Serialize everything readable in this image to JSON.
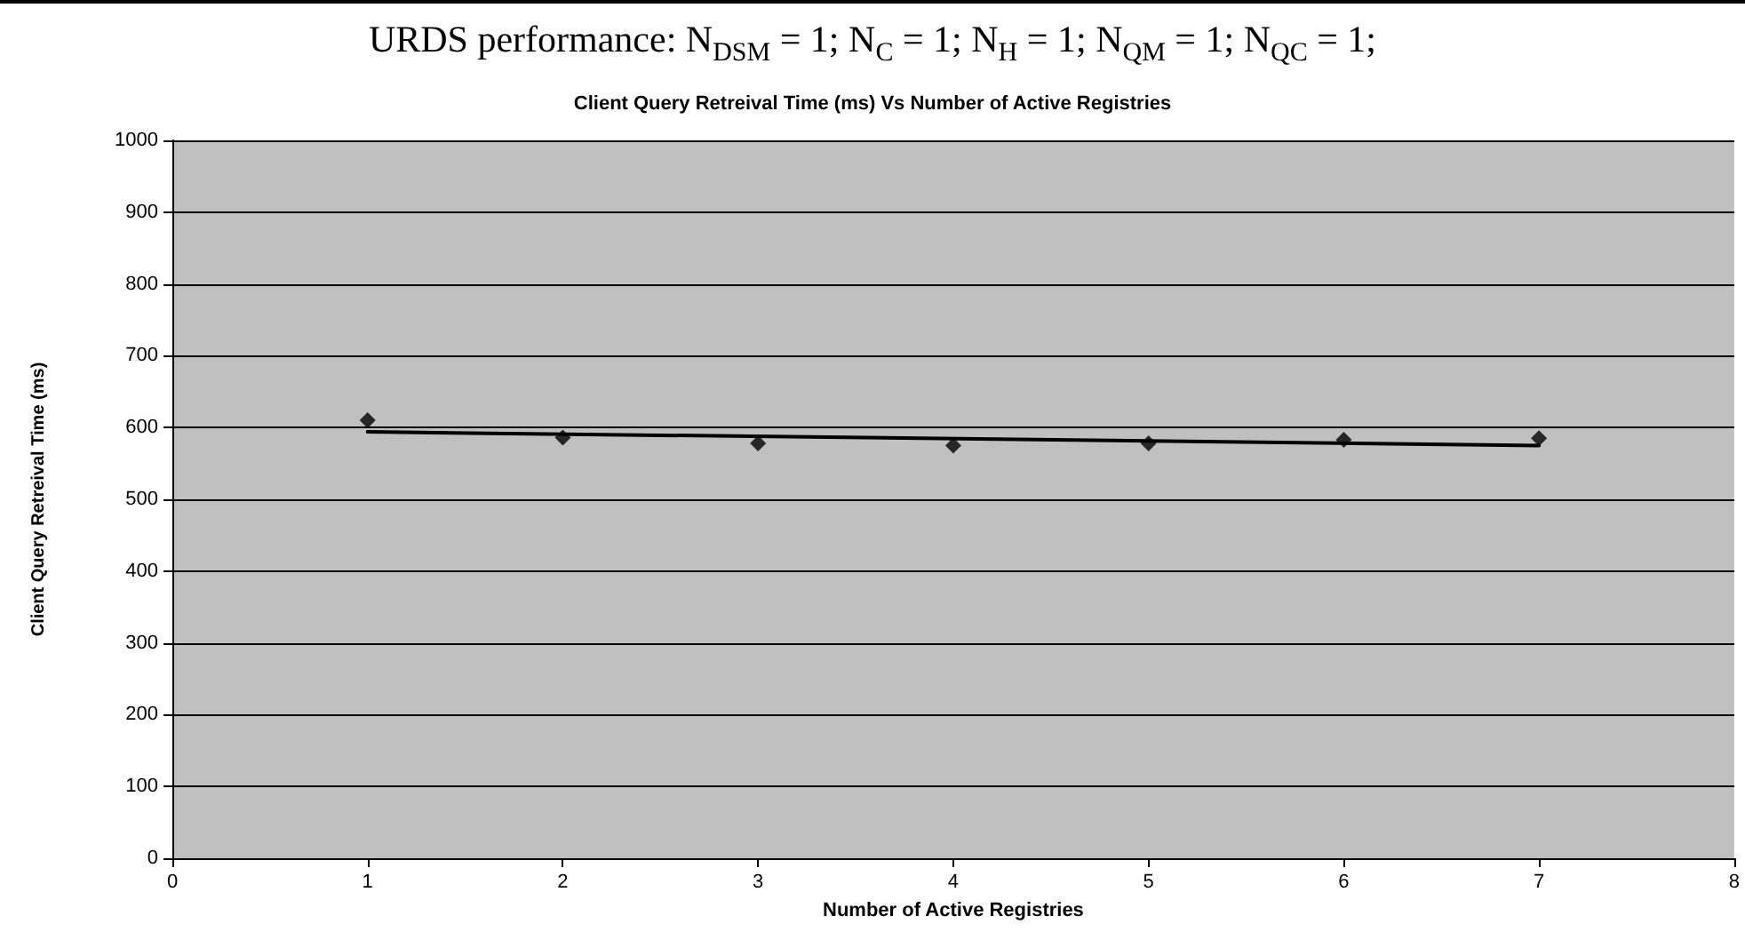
{
  "chart_data": {
    "type": "scatter",
    "title": "URDS performance: N$_{DSM}$ = 1; N$_{C}$ = 1; N$_{H}$ = 1; N$_{QM}$ = 1; N$_{QC}$ = 1;",
    "subtitle": "Client Query Retreival Time (ms) Vs Number of Active Registries",
    "xlabel": "Number of Active Registries",
    "ylabel": "Client Query Retreival Time (ms)",
    "x": [
      1,
      2,
      3,
      4,
      5,
      6,
      7
    ],
    "series": [
      {
        "color": "#000000",
        "marker": "diamond",
        "values": [
          610,
          586,
          578,
          575,
          578,
          583,
          585
        ]
      },
      {
        "type": "line",
        "color": "#000000",
        "marker": "none",
        "line_style": "solid",
        "x": [
          1,
          7
        ],
        "values": [
          594,
          575
        ]
      }
    ],
    "xlim": [
      0,
      8
    ],
    "xticks": [
      0,
      1,
      2,
      3,
      4,
      5,
      6,
      7,
      8
    ],
    "ylim": [
      0,
      1000
    ],
    "yticks": [
      0,
      100,
      200,
      300,
      400,
      500,
      600,
      700,
      800,
      900,
      1000
    ],
    "grid": "y"
  }
}
